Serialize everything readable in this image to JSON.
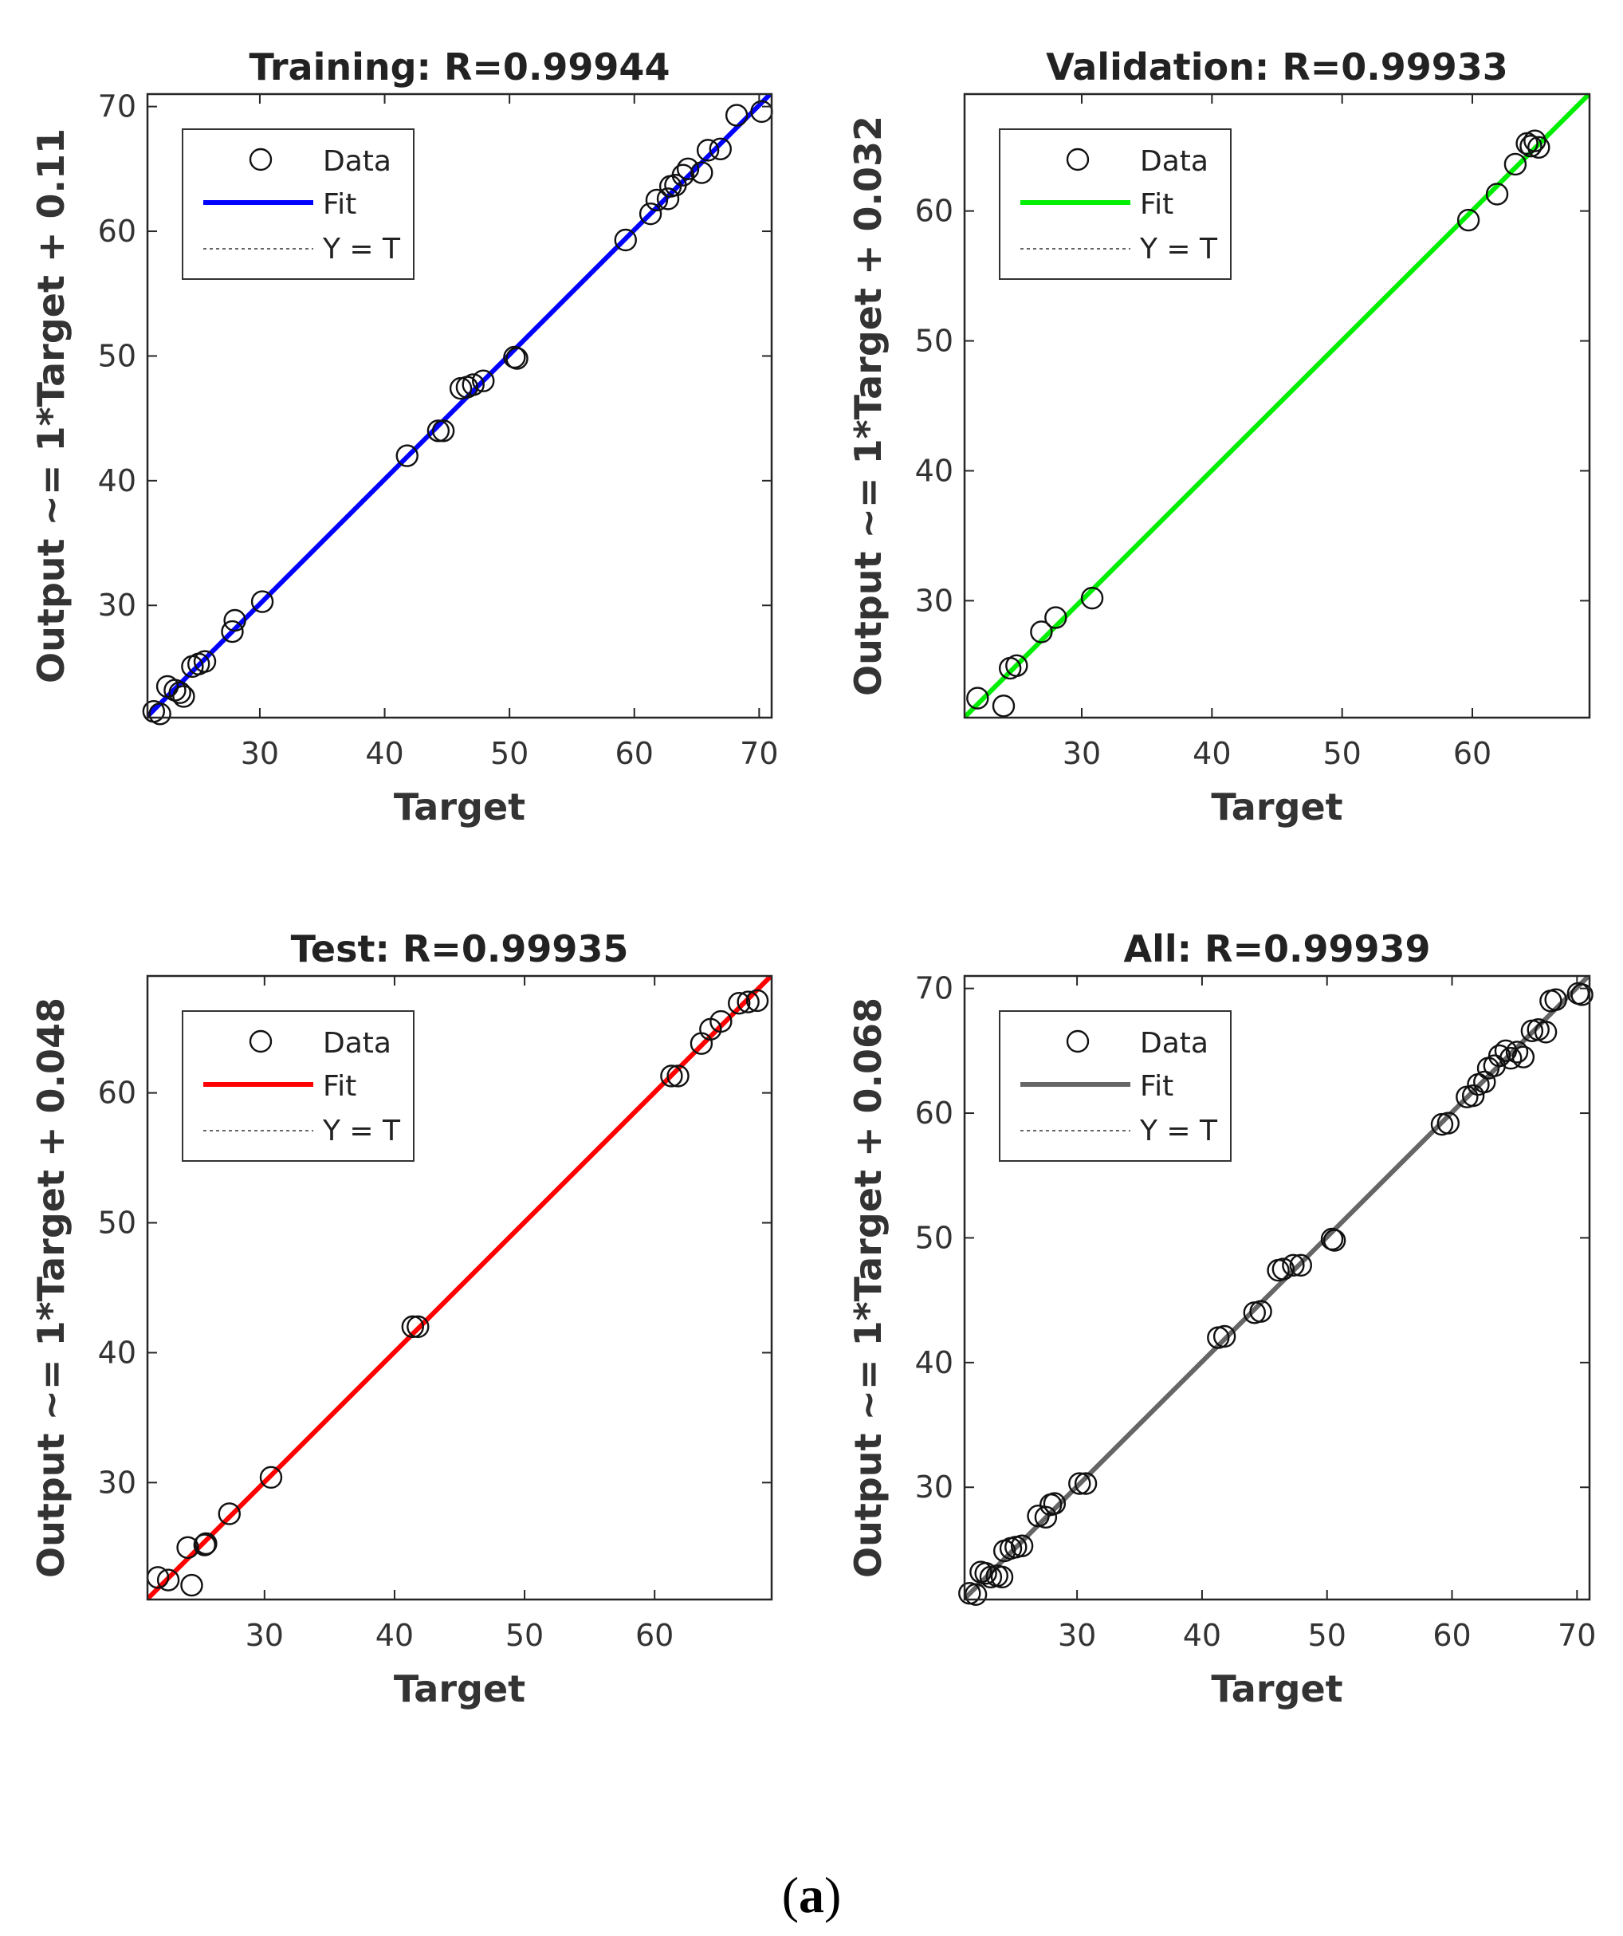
{
  "caption": {
    "open": "(",
    "letter": "a",
    "close": ")"
  },
  "legend": {
    "data": "Data",
    "fit": "Fit",
    "yt": "Y = T"
  },
  "chart_data": [
    {
      "type": "scatter",
      "title": "Training: R=0.99944",
      "xlabel": "Target",
      "ylabel": "Output ~= 1*Target + 0.11",
      "xlim": [
        21,
        71
      ],
      "ylim": [
        21,
        71
      ],
      "xticks": [
        30,
        40,
        50,
        60,
        70
      ],
      "yticks": [
        30,
        40,
        50,
        60,
        70
      ],
      "fit": {
        "slope": 1,
        "intercept": 0.11,
        "color": "#0000ff"
      },
      "series": [
        {
          "points": [
            [
              21.5,
              21.5
            ],
            [
              22,
              21.3
            ],
            [
              22.6,
              23.5
            ],
            [
              23.2,
              23.2
            ],
            [
              23.6,
              23
            ],
            [
              23.9,
              22.7
            ],
            [
              24.6,
              25.1
            ],
            [
              25.1,
              25.3
            ],
            [
              25.6,
              25.5
            ],
            [
              27.8,
              27.9
            ],
            [
              28,
              28.8
            ],
            [
              30.2,
              30.3
            ],
            [
              41.8,
              42
            ],
            [
              44.3,
              44
            ],
            [
              44.7,
              44
            ],
            [
              46.1,
              47.4
            ],
            [
              46.6,
              47.5
            ],
            [
              47.1,
              47.7
            ],
            [
              47.9,
              48
            ],
            [
              50.4,
              49.9
            ],
            [
              50.6,
              49.8
            ],
            [
              59.3,
              59.3
            ],
            [
              61.3,
              61.4
            ],
            [
              61.8,
              62.5
            ],
            [
              62.7,
              62.6
            ],
            [
              62.9,
              63.6
            ],
            [
              63.3,
              63.7
            ],
            [
              63.9,
              64.5
            ],
            [
              64.3,
              65
            ],
            [
              65.4,
              64.7
            ],
            [
              65.9,
              66.5
            ],
            [
              66.9,
              66.6
            ],
            [
              68.2,
              69.3
            ],
            [
              70.2,
              69.6
            ]
          ]
        }
      ]
    },
    {
      "type": "scatter",
      "title": "Validation: R=0.99933",
      "xlabel": "Target",
      "ylabel": "Output ~= 1*Target + 0.032",
      "xlim": [
        21,
        69
      ],
      "ylim": [
        21,
        69
      ],
      "xticks": [
        30,
        40,
        50,
        60
      ],
      "yticks": [
        30,
        40,
        50,
        60
      ],
      "fit": {
        "slope": 1,
        "intercept": 0.032,
        "color": "#00ee00"
      },
      "series": [
        {
          "points": [
            [
              22,
              22.5
            ],
            [
              24,
              21.9
            ],
            [
              24.5,
              24.8
            ],
            [
              25,
              25
            ],
            [
              26.9,
              27.6
            ],
            [
              28,
              28.7
            ],
            [
              30.8,
              30.2
            ],
            [
              59.7,
              59.3
            ],
            [
              61.9,
              61.3
            ],
            [
              63.3,
              63.6
            ],
            [
              64.2,
              65.2
            ],
            [
              64.5,
              65
            ],
            [
              64.8,
              65.4
            ],
            [
              65.1,
              64.9
            ]
          ]
        }
      ]
    },
    {
      "type": "scatter",
      "title": "Test: R=0.99935",
      "xlabel": "Target",
      "ylabel": "Output ~= 1*Target + 0.048",
      "xlim": [
        21,
        69
      ],
      "ylim": [
        21,
        69
      ],
      "xticks": [
        30,
        40,
        50,
        60
      ],
      "yticks": [
        30,
        40,
        50,
        60
      ],
      "fit": {
        "slope": 1,
        "intercept": 0.048,
        "color": "#ff0000"
      },
      "series": [
        {
          "points": [
            [
              21.8,
              22.7
            ],
            [
              22.6,
              22.5
            ],
            [
              24.1,
              25
            ],
            [
              24.4,
              22.1
            ],
            [
              25.4,
              25.2
            ],
            [
              25.5,
              25.3
            ],
            [
              27.3,
              27.6
            ],
            [
              30.5,
              30.4
            ],
            [
              41.4,
              42
            ],
            [
              41.8,
              42
            ],
            [
              61.3,
              61.3
            ],
            [
              61.8,
              61.3
            ],
            [
              63.6,
              63.8
            ],
            [
              64.3,
              64.9
            ],
            [
              65.1,
              65.5
            ],
            [
              66.5,
              66.9
            ],
            [
              67.2,
              67
            ],
            [
              67.9,
              67.1
            ]
          ]
        }
      ]
    },
    {
      "type": "scatter",
      "title": "All: R=0.99939",
      "xlabel": "Target",
      "ylabel": "Output ~= 1*Target + 0.068",
      "xlim": [
        21,
        71
      ],
      "ylim": [
        21,
        71
      ],
      "xticks": [
        30,
        40,
        50,
        60,
        70
      ],
      "yticks": [
        30,
        40,
        50,
        60,
        70
      ],
      "fit": {
        "slope": 1,
        "intercept": 0.068,
        "color": "#666666"
      },
      "series": [
        {
          "points": [
            [
              21.4,
              21.5
            ],
            [
              21.9,
              21.4
            ],
            [
              22.3,
              23.2
            ],
            [
              22.7,
              23.1
            ],
            [
              23.1,
              22.8
            ],
            [
              23.6,
              22.9
            ],
            [
              24,
              22.8
            ],
            [
              24.2,
              24.9
            ],
            [
              24.7,
              25.1
            ],
            [
              25.1,
              25.2
            ],
            [
              25.6,
              25.3
            ],
            [
              26.9,
              27.7
            ],
            [
              27.5,
              27.6
            ],
            [
              27.9,
              28.6
            ],
            [
              28.2,
              28.7
            ],
            [
              30.2,
              30.3
            ],
            [
              30.7,
              30.3
            ],
            [
              41.3,
              42
            ],
            [
              41.8,
              42.1
            ],
            [
              44.2,
              44
            ],
            [
              44.7,
              44.1
            ],
            [
              46.1,
              47.4
            ],
            [
              46.5,
              47.5
            ],
            [
              47.3,
              47.8
            ],
            [
              47.9,
              47.8
            ],
            [
              50.4,
              49.9
            ],
            [
              50.6,
              49.8
            ],
            [
              59.2,
              59.1
            ],
            [
              59.7,
              59.2
            ],
            [
              61.2,
              61.3
            ],
            [
              61.7,
              61.4
            ],
            [
              62.1,
              62.3
            ],
            [
              62.6,
              62.5
            ],
            [
              62.9,
              63.6
            ],
            [
              63.4,
              63.8
            ],
            [
              63.8,
              64.6
            ],
            [
              64.3,
              65
            ],
            [
              64.7,
              64.4
            ],
            [
              65.2,
              64.9
            ],
            [
              65.7,
              64.5
            ],
            [
              66.4,
              66.6
            ],
            [
              66.9,
              66.7
            ],
            [
              67.5,
              66.5
            ],
            [
              67.9,
              69
            ],
            [
              68.3,
              69.1
            ],
            [
              70.1,
              69.6
            ],
            [
              70.4,
              69.5
            ]
          ]
        }
      ]
    }
  ]
}
